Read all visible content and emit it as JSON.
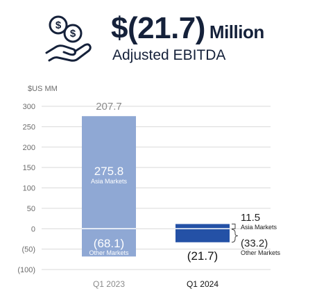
{
  "headline": {
    "value": "$(21.7)",
    "unit": "Million",
    "subtitle": "Adjusted EBITDA"
  },
  "icon": "hand-holding-dollar-coins-icon",
  "colors": {
    "text_dark": "#15213a",
    "bar_2023": "#8fa8d4",
    "bar_2024": "#2451a6",
    "grid": "#d9d9d9",
    "tick": "#6b6b6b"
  },
  "chart_data": {
    "type": "bar",
    "stacked": true,
    "unit_label": "$US MM",
    "ylim": [
      -100,
      300
    ],
    "yticks": [
      300,
      250,
      200,
      150,
      100,
      50,
      0,
      -50,
      -100
    ],
    "ytick_labels": [
      "300",
      "250",
      "200",
      "150",
      "100",
      "50",
      "0",
      "(50)",
      "(100)"
    ],
    "grid": true,
    "categories": [
      "Q1 2023",
      "Q1 2024"
    ],
    "totals": [
      207.7,
      -21.7
    ],
    "total_labels": [
      "207.7",
      "(21.7)"
    ],
    "series": [
      {
        "name": "Asia Markets",
        "values": [
          275.8,
          11.5
        ],
        "value_labels": [
          "275.8",
          "11.5"
        ]
      },
      {
        "name": "Other Markets",
        "values": [
          -68.1,
          -33.2
        ],
        "value_labels": [
          "(68.1)",
          "(33.2)"
        ]
      }
    ]
  }
}
